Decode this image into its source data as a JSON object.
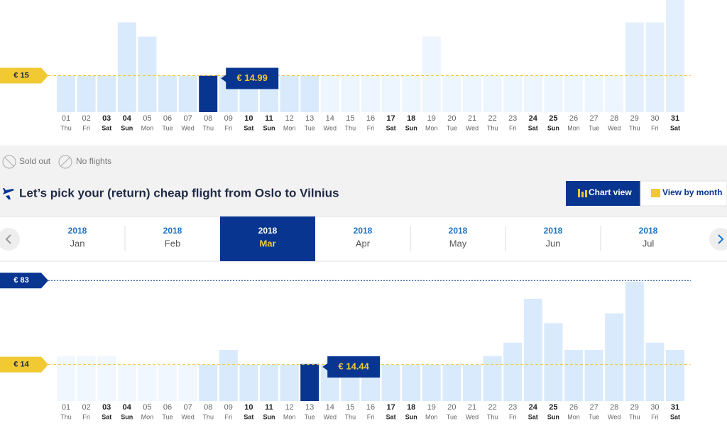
{
  "charts": [
    {
      "type": "bar",
      "categories": [
        "01",
        "02",
        "03",
        "04",
        "05",
        "06",
        "07",
        "08",
        "09",
        "10",
        "11",
        "12",
        "13",
        "14",
        "15",
        "16",
        "17",
        "18",
        "19",
        "20",
        "21",
        "22",
        "23",
        "24",
        "25",
        "26",
        "27",
        "28",
        "29",
        "30",
        "31"
      ],
      "weekdays": [
        "Thu",
        "Fri",
        "Sat",
        "Sun",
        "Mon",
        "Tue",
        "Wed",
        "Thu",
        "Fri",
        "Sat",
        "Sun",
        "Mon",
        "Tue",
        "Wed",
        "Thu",
        "Fri",
        "Sat",
        "Sun",
        "Mon",
        "Tue",
        "Wed",
        "Thu",
        "Fri",
        "Sat",
        "Sun",
        "Mon",
        "Tue",
        "Wed",
        "Thu",
        "Fri",
        "Sat"
      ],
      "bold": [
        false,
        false,
        true,
        true,
        false,
        false,
        false,
        false,
        false,
        true,
        true,
        false,
        false,
        false,
        false,
        false,
        true,
        true,
        false,
        false,
        false,
        false,
        false,
        true,
        true,
        false,
        false,
        false,
        false,
        false,
        true
      ],
      "values": [
        15,
        15,
        15,
        60,
        48,
        15,
        15,
        14.99,
        15,
        15,
        15,
        15,
        15,
        15,
        15,
        15,
        15,
        15,
        48,
        15,
        15,
        15,
        15,
        15,
        15,
        15,
        15,
        15,
        60,
        60,
        79
      ],
      "value_labels": [
        null,
        null,
        null,
        null,
        null,
        null,
        null,
        "€ 14.99",
        null,
        null,
        null,
        null,
        null,
        null,
        null,
        null,
        null,
        null,
        null,
        null,
        null,
        null,
        null,
        null,
        null,
        null,
        null,
        null,
        null,
        null,
        null
      ],
      "colors": [
        "#d9eafc",
        "#d9eafc",
        "#d9eafc",
        "#d9eafc",
        "#d9eafc",
        "#d9eafc",
        "#d9eafc",
        "#073590",
        "#d9eafc",
        "#d9eafc",
        "#d9eafc",
        "#d9eafc",
        "#d9eafc",
        "#edf5fe",
        "#edf5fe",
        "#edf5fe",
        "#edf5fe",
        "#edf5fe",
        "#edf5fe",
        "#edf5fe",
        "#edf5fe",
        "#edf5fe",
        "#edf5fe",
        "#edf5fe",
        "#edf5fe",
        "#edf5fe",
        "#edf5fe",
        "#edf5fe",
        "#e3effc",
        "#e3effc",
        "#e3effc"
      ],
      "ylim": [
        -16,
        79
      ],
      "reference_lines": [
        {
          "value": 15,
          "label": "€ 15",
          "color": "#f1c933"
        }
      ]
    },
    {
      "type": "bar",
      "categories": [
        "01",
        "02",
        "03",
        "04",
        "05",
        "06",
        "07",
        "08",
        "09",
        "10",
        "11",
        "12",
        "13",
        "14",
        "15",
        "16",
        "17",
        "18",
        "19",
        "20",
        "21",
        "22",
        "23",
        "24",
        "25",
        "26",
        "27",
        "28",
        "29",
        "30",
        "31"
      ],
      "weekdays": [
        "Thu",
        "Fri",
        "Sat",
        "Sun",
        "Mon",
        "Tue",
        "Wed",
        "Thu",
        "Fri",
        "Sat",
        "Sun",
        "Mon",
        "Tue",
        "Wed",
        "Thu",
        "Fri",
        "Sat",
        "Sun",
        "Mon",
        "Tue",
        "Wed",
        "Thu",
        "Fri",
        "Sat",
        "Sun",
        "Mon",
        "Tue",
        "Wed",
        "Thu",
        "Fri",
        "Sat"
      ],
      "bold": [
        false,
        false,
        true,
        true,
        false,
        false,
        false,
        false,
        false,
        true,
        true,
        false,
        false,
        false,
        false,
        false,
        true,
        true,
        false,
        false,
        false,
        false,
        false,
        true,
        true,
        false,
        false,
        false,
        false,
        false,
        true
      ],
      "values": [
        21,
        21,
        21,
        14,
        14,
        14,
        14,
        14,
        26,
        14,
        14,
        14,
        14.44,
        14,
        14,
        14,
        14,
        14,
        14,
        14,
        14,
        21,
        32,
        68,
        48,
        26,
        26,
        56,
        82,
        32,
        26
      ],
      "value_labels": [
        null,
        null,
        null,
        null,
        null,
        null,
        null,
        null,
        null,
        null,
        null,
        null,
        "€ 14.44",
        null,
        null,
        null,
        null,
        null,
        null,
        null,
        null,
        null,
        null,
        null,
        null,
        null,
        null,
        null,
        null,
        null,
        null
      ],
      "colors": [
        "#f1f7fe",
        "#f1f7fe",
        "#f1f7fe",
        "#f1f7fe",
        "#f1f7fe",
        "#f1f7fe",
        "#f1f7fe",
        "#d9eafc",
        "#d9eafc",
        "#d9eafc",
        "#d9eafc",
        "#d9eafc",
        "#073590",
        "#d9eafc",
        "#d9eafc",
        "#d9eafc",
        "#d9eafc",
        "#d9eafc",
        "#d9eafc",
        "#d9eafc",
        "#d9eafc",
        "#d9eafc",
        "#d9eafc",
        "#d9eafc",
        "#d9eafc",
        "#d9eafc",
        "#d9eafc",
        "#d9eafc",
        "#d9eafc",
        "#d9eafc",
        "#d9eafc"
      ],
      "ylim": [
        -16,
        89
      ],
      "reference_lines": [
        {
          "value": 83,
          "label": "€ 83",
          "color": "#073590"
        },
        {
          "value": 14,
          "label": "€ 14",
          "color": "#f1c933"
        }
      ]
    }
  ],
  "legend": [
    "Sold out",
    "No flights"
  ],
  "title": "Let’s pick your (return) cheap flight from Oslo to Vilnius",
  "buttons": [
    "Chart view",
    "View by month"
  ],
  "months": [
    {
      "year": "2018",
      "month": "Jan",
      "selected": false
    },
    {
      "year": "2018",
      "month": "Feb",
      "selected": false
    },
    {
      "year": "2018",
      "month": "Mar",
      "selected": true
    },
    {
      "year": "2018",
      "month": "Apr",
      "selected": false
    },
    {
      "year": "2018",
      "month": "May",
      "selected": false
    },
    {
      "year": "2018",
      "month": "Jun",
      "selected": false
    },
    {
      "year": "2018",
      "month": "Jul",
      "selected": false
    }
  ]
}
